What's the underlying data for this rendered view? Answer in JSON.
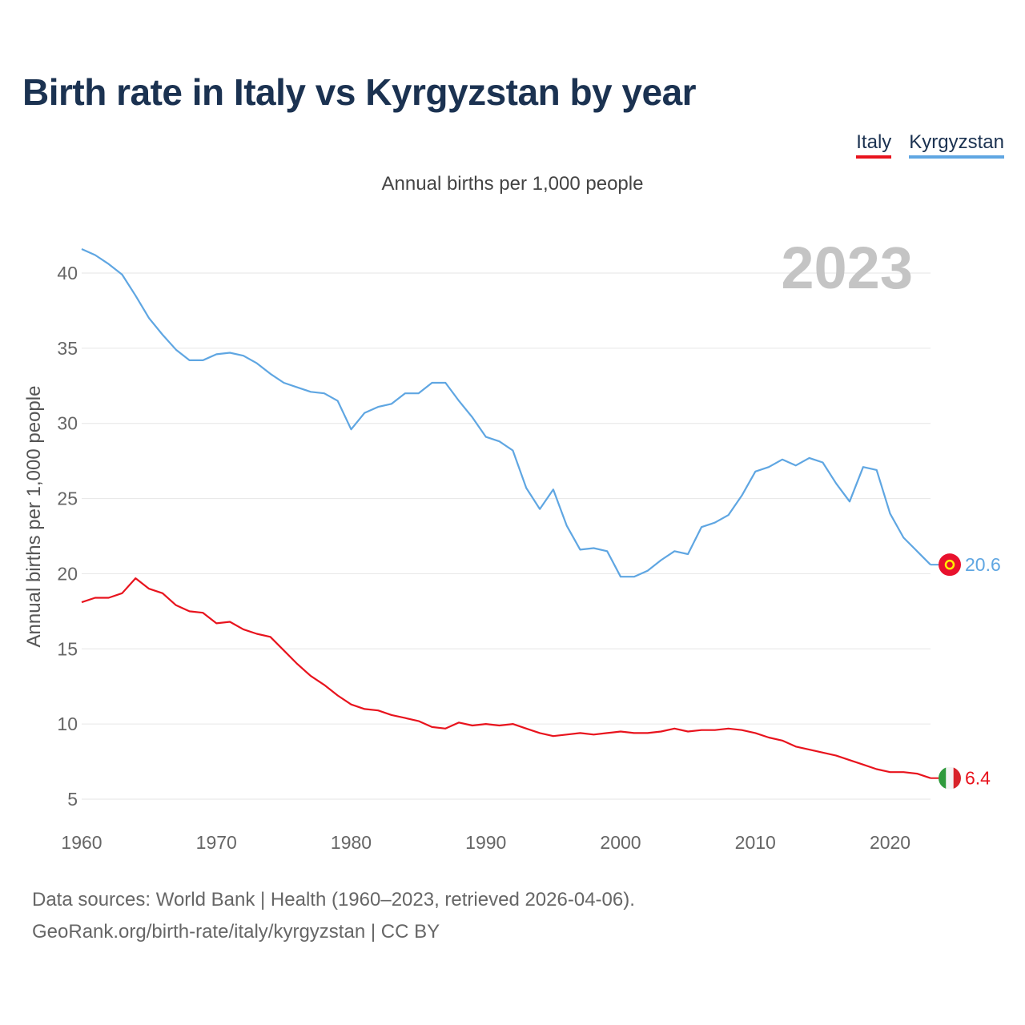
{
  "title": "Birth rate in Italy vs Kyrgyzstan by year",
  "legend": [
    {
      "name": "Italy",
      "color": "#e8131d"
    },
    {
      "name": "Kyrgyzstan",
      "color": "#5fa6e2"
    }
  ],
  "subtitle": "Annual births per 1,000 people",
  "footer": {
    "line1": "Data sources: World Bank | Health (1960–2023, retrieved 2026-04-06).",
    "line2": "GeoRank.org/birth-rate/italy/kyrgyzstan | CC BY"
  },
  "chart_data": {
    "type": "line",
    "ylabel": "Annual births per 1,000 people",
    "xlabel": "",
    "year_label": "2023",
    "xlim": [
      1960,
      2023
    ],
    "ylim": [
      3,
      42
    ],
    "x_ticks": [
      1960,
      1970,
      1980,
      1990,
      2000,
      2010,
      2020
    ],
    "y_ticks": [
      5,
      10,
      15,
      20,
      25,
      30,
      35,
      40
    ],
    "grid": true,
    "x": [
      1960,
      1961,
      1962,
      1963,
      1964,
      1965,
      1966,
      1967,
      1968,
      1969,
      1970,
      1971,
      1972,
      1973,
      1974,
      1975,
      1976,
      1977,
      1978,
      1979,
      1980,
      1981,
      1982,
      1983,
      1984,
      1985,
      1986,
      1987,
      1988,
      1989,
      1990,
      1991,
      1992,
      1993,
      1994,
      1995,
      1996,
      1997,
      1998,
      1999,
      2000,
      2001,
      2002,
      2003,
      2004,
      2005,
      2006,
      2007,
      2008,
      2009,
      2010,
      2011,
      2012,
      2013,
      2014,
      2015,
      2016,
      2017,
      2018,
      2019,
      2020,
      2021,
      2022,
      2023
    ],
    "series": [
      {
        "name": "Kyrgyzstan",
        "color": "#5fa6e2",
        "end_label": "20.6",
        "values": [
          41.6,
          41.2,
          40.6,
          39.9,
          38.5,
          37.0,
          35.9,
          34.9,
          34.2,
          34.2,
          34.6,
          34.7,
          34.5,
          34.0,
          33.3,
          32.7,
          32.4,
          32.1,
          32.0,
          31.5,
          29.6,
          30.7,
          31.1,
          31.3,
          32.0,
          32.0,
          32.7,
          32.7,
          31.5,
          30.4,
          29.1,
          28.8,
          28.2,
          25.7,
          24.3,
          25.6,
          23.2,
          21.6,
          21.7,
          21.5,
          19.8,
          19.8,
          20.2,
          20.9,
          21.5,
          21.3,
          23.1,
          23.4,
          23.9,
          25.2,
          26.8,
          27.1,
          27.6,
          27.2,
          27.7,
          27.4,
          26.0,
          24.8,
          27.1,
          26.9,
          24.0,
          22.4,
          21.5,
          20.6
        ]
      },
      {
        "name": "Italy",
        "color": "#e8131d",
        "end_label": "6.4",
        "values": [
          18.1,
          18.4,
          18.4,
          18.7,
          19.7,
          19.0,
          18.7,
          17.9,
          17.5,
          17.4,
          16.7,
          16.8,
          16.3,
          16.0,
          15.8,
          14.9,
          14.0,
          13.2,
          12.6,
          11.9,
          11.3,
          11.0,
          10.9,
          10.6,
          10.4,
          10.2,
          9.8,
          9.7,
          10.1,
          9.9,
          10.0,
          9.9,
          10.0,
          9.7,
          9.4,
          9.2,
          9.3,
          9.4,
          9.3,
          9.4,
          9.5,
          9.4,
          9.4,
          9.5,
          9.7,
          9.5,
          9.6,
          9.6,
          9.7,
          9.6,
          9.4,
          9.1,
          8.9,
          8.5,
          8.3,
          8.1,
          7.9,
          7.6,
          7.3,
          7.0,
          6.8,
          6.8,
          6.7,
          6.4
        ]
      }
    ]
  }
}
